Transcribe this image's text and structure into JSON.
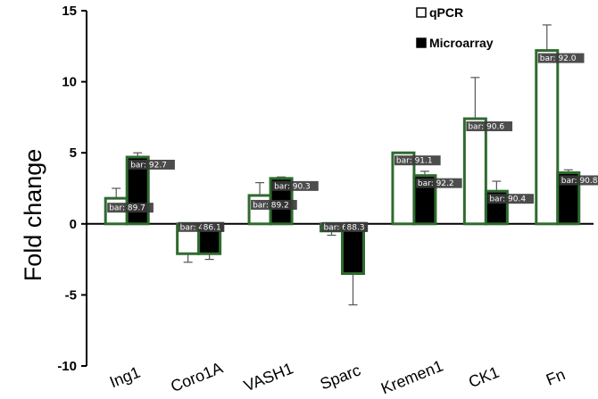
{
  "chart_data": {
    "type": "bar",
    "ylabel": "Fold change",
    "xlabel": "",
    "ylim": [
      -10,
      15
    ],
    "yticks": [
      -10,
      -5,
      0,
      5,
      10,
      15
    ],
    "ytick_labels": [
      "-10",
      "-5",
      "0",
      "5",
      "10",
      "15"
    ],
    "categories": [
      "Ing1",
      "Coro1A",
      "VASH1",
      "Sparc",
      "Kremen1",
      "CK1",
      "Fn"
    ],
    "legend_position": "top-right",
    "series": [
      {
        "name": "qPCR",
        "fill": "#ffffff",
        "stroke": "#2e6b2e",
        "values": [
          1.8,
          -2.1,
          2.0,
          -0.5,
          5.0,
          7.4,
          12.2
        ],
        "error": [
          0.7,
          0.6,
          0.9,
          0.3,
          0.0,
          2.9,
          1.8
        ],
        "data_labels": [
          "bar: 89.7",
          "bar: 43.6",
          "bar: 89.2",
          "bar: 64.0",
          "bar: 91.1",
          "bar: 90.6",
          "bar: 92.0"
        ]
      },
      {
        "name": "Microarray",
        "fill": "#000000",
        "stroke": "#2e6b2e",
        "values": [
          4.7,
          -2.1,
          3.2,
          -3.5,
          3.4,
          2.3,
          3.6
        ],
        "error": [
          0.3,
          0.4,
          0.1,
          2.2,
          0.3,
          0.7,
          0.2
        ],
        "data_labels": [
          "bar: 92.7",
          "86.1",
          "bar: 90.3",
          "88.3",
          "bar: 92.2",
          "bar: 90.4",
          "bar: 90.8"
        ]
      }
    ]
  }
}
